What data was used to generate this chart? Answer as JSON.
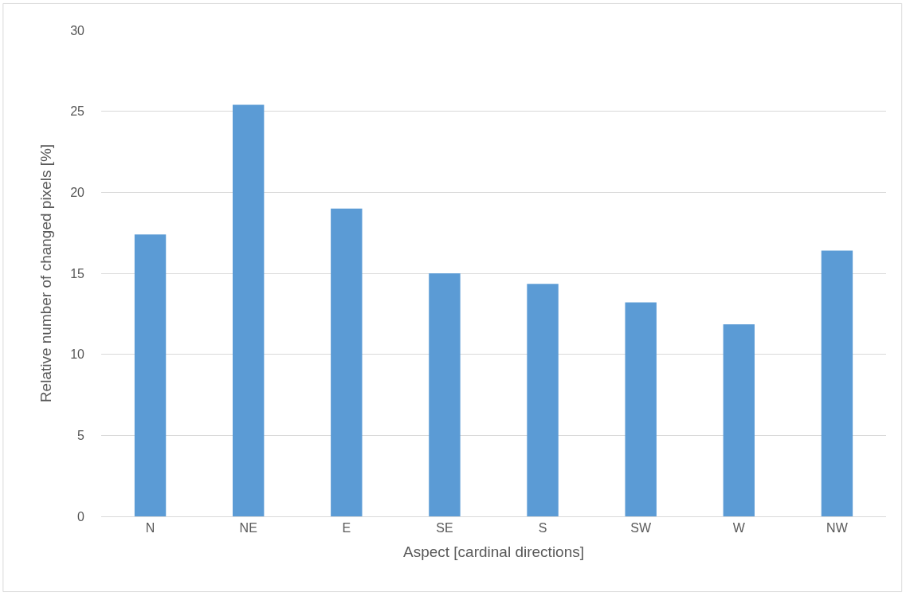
{
  "chart_data": {
    "type": "bar",
    "xlabel": "Aspect [cardinal directions]",
    "ylabel": "Relative number of changed pixels [%]",
    "categories": [
      "N",
      "NE",
      "E",
      "SE",
      "S",
      "SW",
      "W",
      "NW"
    ],
    "values": [
      17.4,
      25.4,
      19.0,
      15.0,
      14.35,
      13.2,
      11.85,
      16.4
    ],
    "color": "#5b9bd5",
    "ylim": [
      0,
      30
    ],
    "yticks": [
      0,
      5,
      10,
      15,
      20,
      25,
      30
    ],
    "grid": "y"
  }
}
